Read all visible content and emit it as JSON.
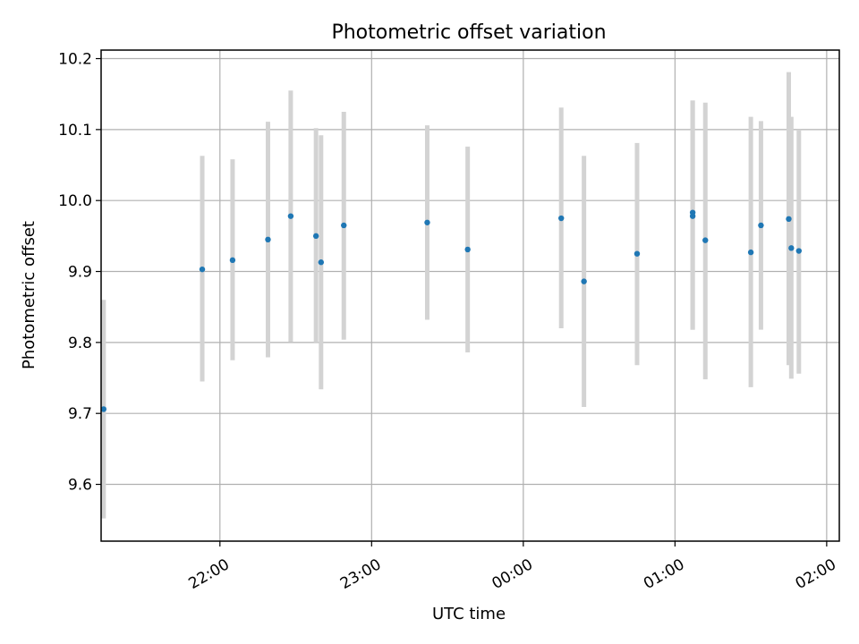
{
  "chart_data": {
    "type": "scatter",
    "title": "Photometric offset variation",
    "xlabel": "UTC time",
    "ylabel": "Photometric offset",
    "x_axis_type": "time",
    "xlim": [
      "21:13",
      "02:05"
    ],
    "ylim": [
      9.52,
      10.212
    ],
    "x_ticks": [
      "22:00",
      "23:00",
      "00:00",
      "01:00",
      "02:00"
    ],
    "y_ticks": [
      "9.6",
      "9.7",
      "9.8",
      "9.9",
      "10.0",
      "10.1",
      "10.2"
    ],
    "grid": true,
    "legend": "none",
    "marker_color": "#1f77b4",
    "errorbar_color": "#d3d3d3",
    "points": [
      {
        "t": "21:14",
        "y": 9.706,
        "ylo": 9.552,
        "yhi": 9.86
      },
      {
        "t": "21:53",
        "y": 9.903,
        "ylo": 9.745,
        "yhi": 10.063
      },
      {
        "t": "22:05",
        "y": 9.916,
        "ylo": 9.775,
        "yhi": 10.058
      },
      {
        "t": "22:19",
        "y": 9.945,
        "ylo": 9.779,
        "yhi": 10.111
      },
      {
        "t": "22:28",
        "y": 9.978,
        "ylo": 9.801,
        "yhi": 10.155
      },
      {
        "t": "22:38",
        "y": 9.95,
        "ylo": 9.8,
        "yhi": 10.102
      },
      {
        "t": "22:40",
        "y": 9.913,
        "ylo": 9.734,
        "yhi": 10.092
      },
      {
        "t": "22:49",
        "y": 9.965,
        "ylo": 9.804,
        "yhi": 10.125
      },
      {
        "t": "23:22",
        "y": 9.969,
        "ylo": 9.832,
        "yhi": 10.106
      },
      {
        "t": "23:38",
        "y": 9.931,
        "ylo": 9.786,
        "yhi": 10.076
      },
      {
        "t": "00:15",
        "y": 9.975,
        "ylo": 9.82,
        "yhi": 10.131
      },
      {
        "t": "00:24",
        "y": 9.886,
        "ylo": 9.709,
        "yhi": 10.063
      },
      {
        "t": "00:45",
        "y": 9.925,
        "ylo": 9.768,
        "yhi": 10.081
      },
      {
        "t": "01:07",
        "y": 9.983,
        "ylo": 9.818,
        "yhi": 10.141
      },
      {
        "t": "01:07",
        "y": 9.978,
        "ylo": 9.818,
        "yhi": 10.141
      },
      {
        "t": "01:12",
        "y": 9.944,
        "ylo": 9.748,
        "yhi": 10.138
      },
      {
        "t": "01:30",
        "y": 9.927,
        "ylo": 9.737,
        "yhi": 10.118
      },
      {
        "t": "01:34",
        "y": 9.965,
        "ylo": 9.818,
        "yhi": 10.112
      },
      {
        "t": "01:45",
        "y": 9.974,
        "ylo": 9.768,
        "yhi": 10.181
      },
      {
        "t": "01:46",
        "y": 9.933,
        "ylo": 9.749,
        "yhi": 10.118
      },
      {
        "t": "01:49",
        "y": 9.929,
        "ylo": 9.756,
        "yhi": 10.1
      }
    ]
  }
}
